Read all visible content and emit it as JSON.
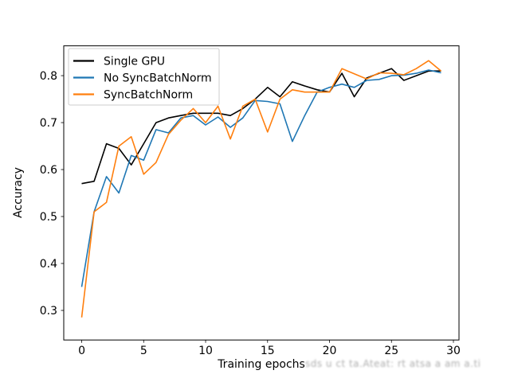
{
  "watermark": {
    "text": "sds u ct ta.Ateat: rt atsa a am a.ti"
  },
  "chart_data": {
    "type": "line",
    "title": "",
    "xlabel": "Training epochs",
    "ylabel": "Accuracy",
    "grid": false,
    "legend_position": "upper left",
    "xlim": [
      -1.45,
      30.45
    ],
    "ylim": [
      0.237,
      0.8635
    ],
    "xticks": [
      {
        "v": 0,
        "label": "0"
      },
      {
        "v": 5,
        "label": "5"
      },
      {
        "v": 10,
        "label": "10"
      },
      {
        "v": 15,
        "label": "15"
      },
      {
        "v": 20,
        "label": "20"
      },
      {
        "v": 25,
        "label": "25"
      },
      {
        "v": 30,
        "label": "30"
      }
    ],
    "yticks": [
      {
        "v": 0.3,
        "label": "0.3"
      },
      {
        "v": 0.4,
        "label": "0.4"
      },
      {
        "v": 0.5,
        "label": "0.5"
      },
      {
        "v": 0.6,
        "label": "0.6"
      },
      {
        "v": 0.7,
        "label": "0.7"
      },
      {
        "v": 0.8,
        "label": "0.8"
      }
    ],
    "x": [
      0,
      1,
      2,
      3,
      4,
      5,
      6,
      7,
      8,
      9,
      10,
      11,
      12,
      13,
      14,
      15,
      16,
      17,
      18,
      19,
      20,
      21,
      22,
      23,
      24,
      25,
      26,
      27,
      28,
      29
    ],
    "series": [
      {
        "name": "Single GPU",
        "color": "#000000",
        "values": [
          0.57,
          0.575,
          0.655,
          0.645,
          0.61,
          0.655,
          0.7,
          0.71,
          0.715,
          0.72,
          0.72,
          0.72,
          0.715,
          0.73,
          0.75,
          0.775,
          0.755,
          0.787,
          0.778,
          0.77,
          0.765,
          0.805,
          0.755,
          0.795,
          0.805,
          0.815,
          0.79,
          0.8,
          0.81,
          0.81
        ]
      },
      {
        "name": "No SyncBatchNorm",
        "color": "#1f77b4",
        "values": [
          0.35,
          0.51,
          0.585,
          0.55,
          0.63,
          0.62,
          0.685,
          0.678,
          0.71,
          0.715,
          0.695,
          0.712,
          0.69,
          0.71,
          0.747,
          0.745,
          0.74,
          0.66,
          0.715,
          0.765,
          0.775,
          0.782,
          0.775,
          0.79,
          0.792,
          0.8,
          0.801,
          0.805,
          0.812,
          0.806
        ]
      },
      {
        "name": "SyncBatchNorm",
        "color": "#ff7f0e",
        "values": [
          0.285,
          0.51,
          0.53,
          0.65,
          0.67,
          0.59,
          0.615,
          0.675,
          0.705,
          0.73,
          0.7,
          0.735,
          0.665,
          0.735,
          0.75,
          0.68,
          0.75,
          0.77,
          0.765,
          0.765,
          0.765,
          0.815,
          0.804,
          0.793,
          0.806,
          0.805,
          0.802,
          0.815,
          0.832,
          0.81
        ]
      }
    ]
  }
}
